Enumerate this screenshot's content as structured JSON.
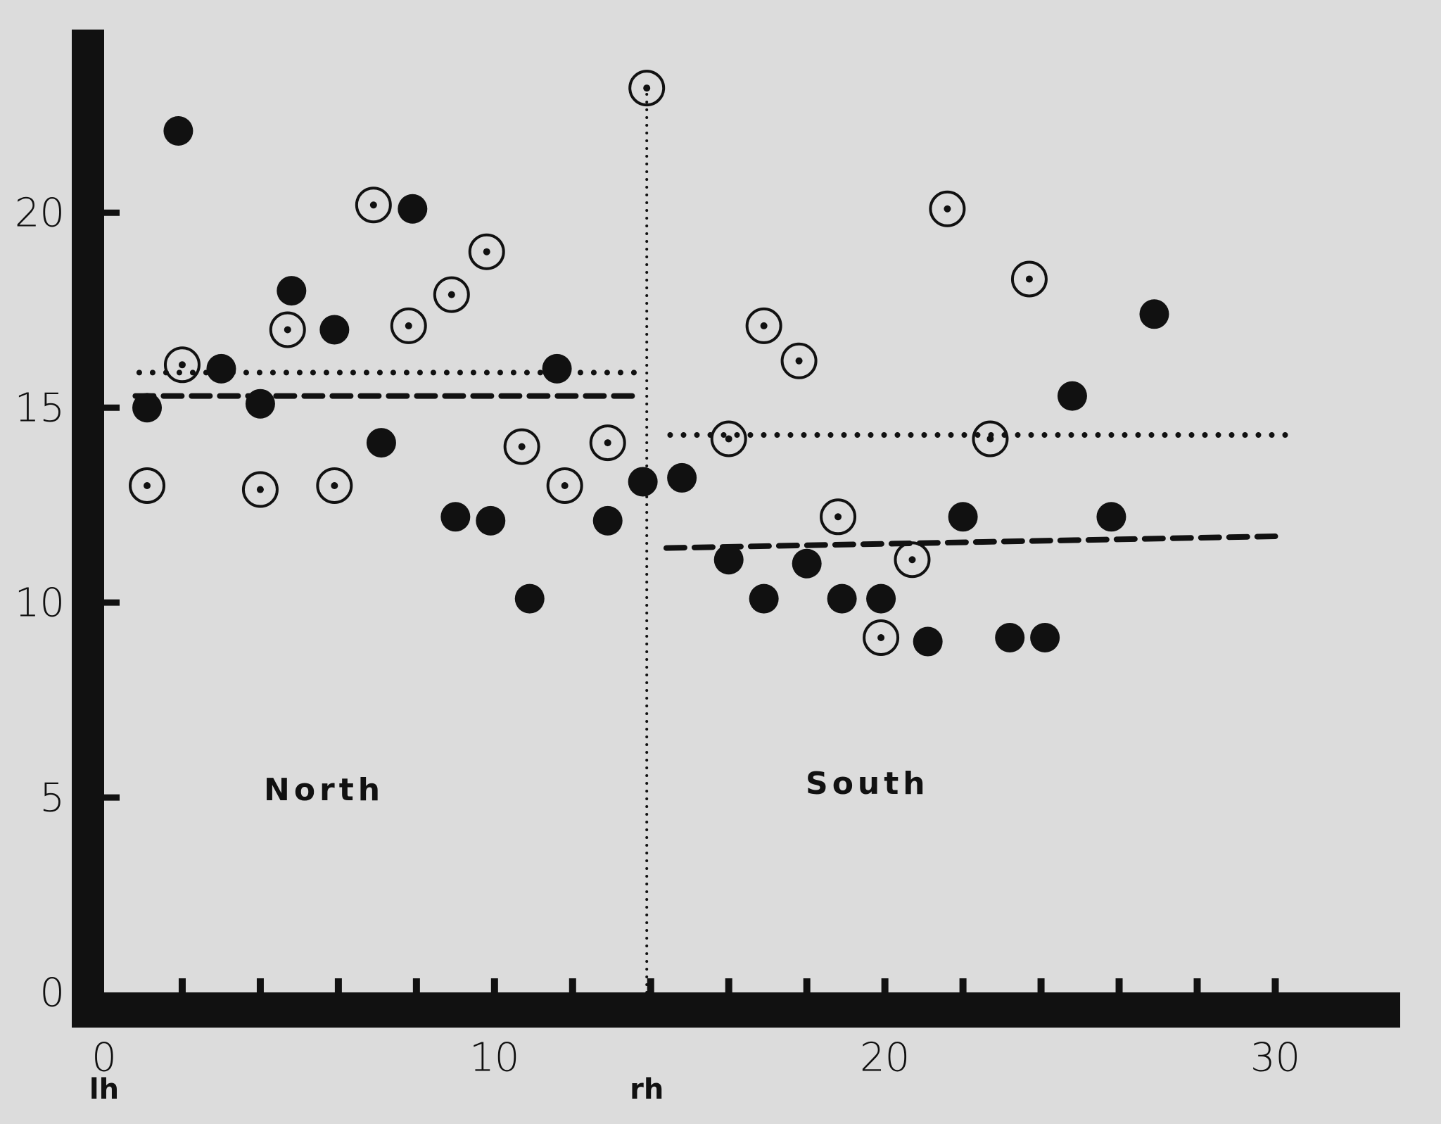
{
  "chart_data": {
    "type": "scatter",
    "xlim": [
      0,
      33.2
    ],
    "ylim": [
      0,
      24.7
    ],
    "xticks": [
      0,
      10,
      20,
      30
    ],
    "yticks": [
      0,
      5,
      10,
      15,
      20
    ],
    "xminorticks": [
      2,
      4,
      6,
      8,
      10,
      12,
      14,
      16,
      18,
      20,
      22,
      24,
      26,
      28,
      30
    ],
    "axis_labels": {
      "left_end": "lh",
      "divider": "rh"
    },
    "regions": [
      "North",
      "South"
    ],
    "series": [
      {
        "marker": "filled",
        "color": "#111111",
        "x": [
          1.1,
          1.9,
          3.0,
          4.0,
          4.8,
          5.9,
          7.1,
          7.9,
          9.0,
          9.9,
          10.9,
          11.6,
          12.9,
          13.8,
          14.8,
          16.0,
          16.9,
          18.0,
          18.9,
          19.9,
          21.1,
          22.0,
          23.2,
          24.1,
          24.8,
          25.8,
          26.9
        ],
        "values": [
          15.0,
          22.1,
          16.0,
          15.1,
          18.0,
          17.0,
          14.1,
          20.1,
          12.2,
          12.1,
          10.1,
          16.0,
          12.1,
          13.1,
          13.2,
          11.1,
          10.1,
          11.0,
          10.1,
          10.1,
          9.0,
          12.2,
          9.1,
          9.1,
          15.3,
          12.2,
          17.4
        ]
      },
      {
        "marker": "circled-dot",
        "color": "#111111",
        "x": [
          1.1,
          2.0,
          4.0,
          4.7,
          5.9,
          6.9,
          7.8,
          8.9,
          9.8,
          10.7,
          11.8,
          12.9,
          13.9,
          16.0,
          16.9,
          17.8,
          18.8,
          19.9,
          20.7,
          21.6,
          22.7,
          23.7
        ],
        "values": [
          13.0,
          16.1,
          12.9,
          17.0,
          13.0,
          20.2,
          17.1,
          17.9,
          19.0,
          14.0,
          13.0,
          14.1,
          23.2,
          14.2,
          17.1,
          16.2,
          12.2,
          9.1,
          11.1,
          20.1,
          14.2,
          18.3
        ]
      }
    ],
    "lines": [
      {
        "style": "dotted",
        "x": [
          0.9,
          13.9
        ],
        "values": [
          15.9,
          15.9
        ]
      },
      {
        "style": "dashed",
        "x": [
          0.8,
          13.6
        ],
        "values": [
          15.3,
          15.3
        ]
      },
      {
        "style": "dotted",
        "x": [
          14.5,
          30.4
        ],
        "values": [
          14.3,
          14.3
        ]
      },
      {
        "style": "dashed",
        "x": [
          14.4,
          30.0
        ],
        "values": [
          11.4,
          11.7
        ]
      },
      {
        "style": "fine-dotted",
        "x": [
          13.9,
          13.9
        ],
        "values": [
          0,
          23.2
        ]
      }
    ]
  }
}
